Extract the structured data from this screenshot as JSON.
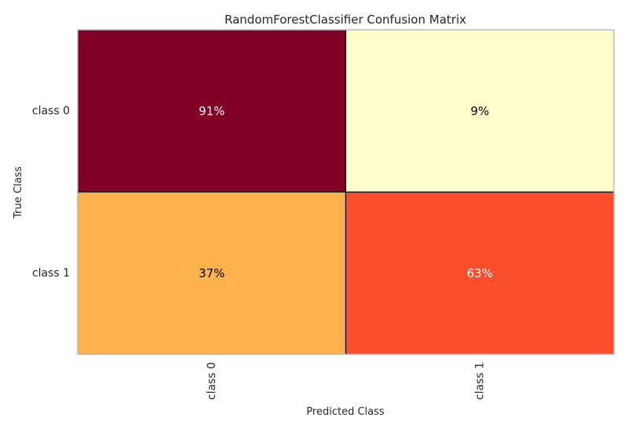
{
  "chart_data": {
    "type": "heatmap",
    "title": "RandomForestClassifier Confusion Matrix",
    "xlabel": "Predicted Class",
    "ylabel": "True Class",
    "x_categories": [
      "class 0",
      "class 1"
    ],
    "y_categories": [
      "class 0",
      "class 1"
    ],
    "values": [
      [
        91,
        9
      ],
      [
        37,
        63
      ]
    ],
    "cell_labels": [
      [
        "91%",
        "9%"
      ],
      [
        "37%",
        "63%"
      ]
    ],
    "colors": [
      [
        "#800026",
        "#ffffcc"
      ],
      [
        "#feb24c",
        "#fc4e2a"
      ]
    ],
    "text_colors": [
      [
        "#ffffff",
        "#000000"
      ],
      [
        "#000000",
        "#ffffff"
      ]
    ],
    "colormap": "YlOrRd",
    "grid": false
  }
}
